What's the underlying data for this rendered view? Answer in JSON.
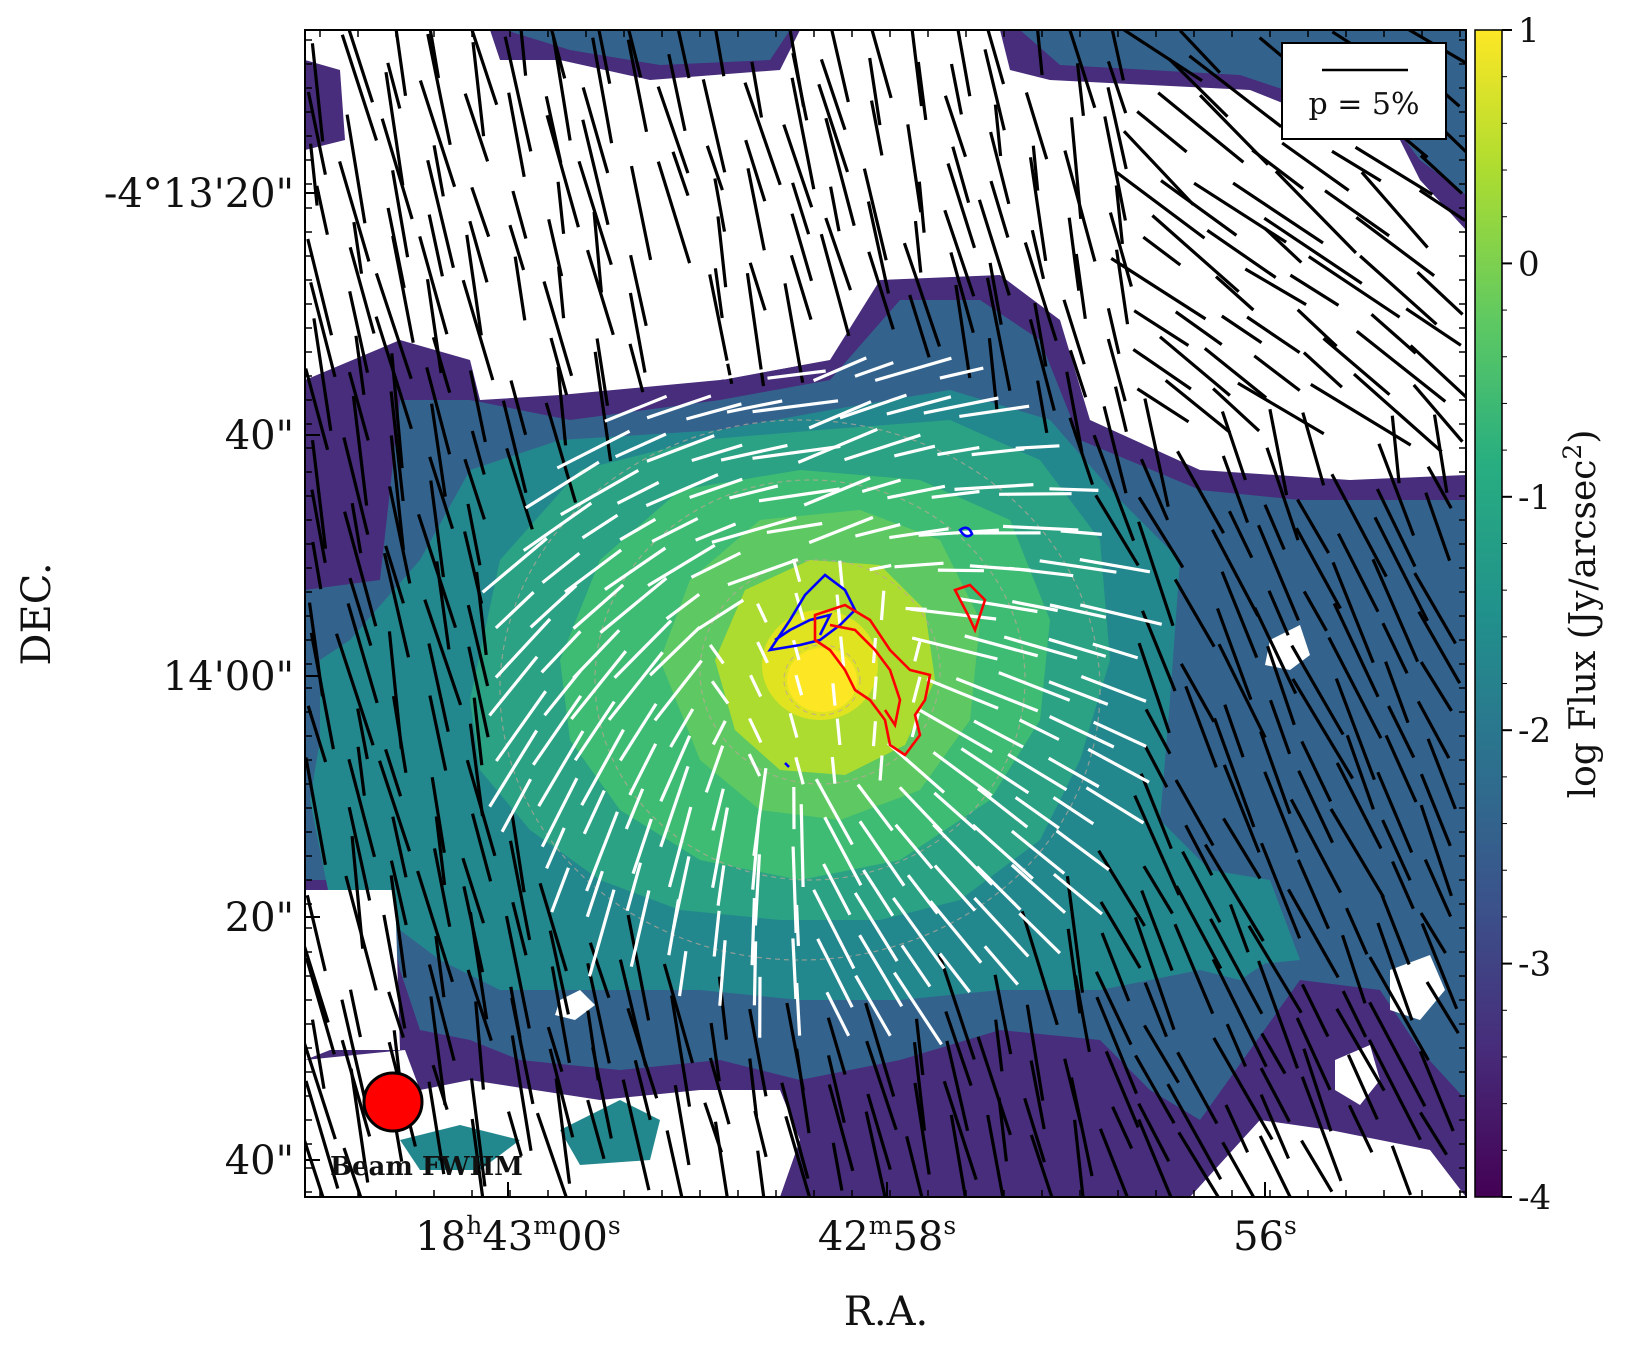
{
  "chart_data": {
    "type": "heatmap",
    "subtype": "contour map with polarization vectors",
    "xlabel": "R.A.",
    "ylabel": "DEC.",
    "x_ticks": [
      {
        "label": "18",
        "unit1": "h",
        "mid": "43",
        "unit2": "m",
        "end": "00",
        "unit3": "s"
      },
      {
        "label": "",
        "unit1": "",
        "mid": "42",
        "unit2": "m",
        "end": "58",
        "unit3": "s"
      },
      {
        "label": "",
        "unit1": "",
        "mid": "",
        "unit2": "",
        "end": "56",
        "unit3": "s"
      }
    ],
    "y_ticks": [
      "-4°13'20\"",
      "40\"",
      "14'00\"",
      "20\"",
      "40\""
    ],
    "colorbar": {
      "label": "log Flux (Jy/arcsec²)",
      "label_main": "log Flux (Jy/arcsec",
      "label_sup": "2",
      "label_end": ")",
      "range": [
        -4,
        1
      ],
      "ticks": [
        "1",
        "0",
        "-1",
        "-2",
        "-3",
        "-4"
      ],
      "colormap": "viridis",
      "colors": [
        "#440154",
        "#3b528b",
        "#21918c",
        "#5ec962",
        "#fde725"
      ]
    },
    "legend": {
      "text": "p = 5%",
      "placement": "top-right"
    },
    "beam_label": "Beam FWHM",
    "beam_color": "#ff0000",
    "vector_colors": {
      "outer": "#000000",
      "inner": "#ffffff"
    },
    "outflow_contours": {
      "red": "#ff0000",
      "blue": "#0000ff"
    }
  }
}
